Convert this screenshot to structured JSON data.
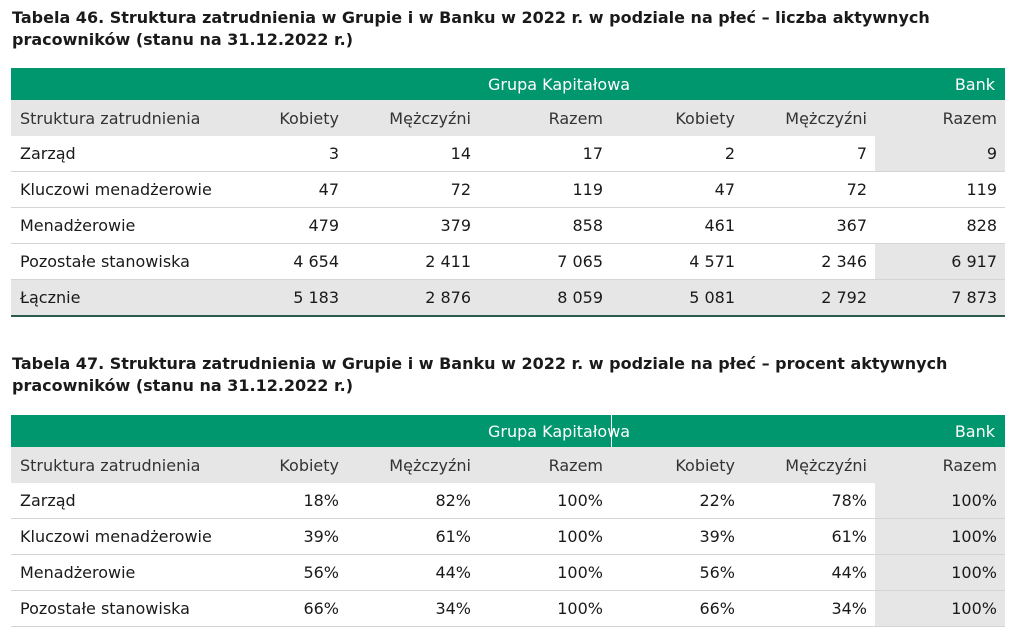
{
  "table46": {
    "caption": "Tabela 46. Struktura zatrudnienia w Grupie i w Banku w 2022 r. w podziale na płeć – liczba aktywnych pracowników (stanu na 31.12.2022 r.)",
    "group_header": "Grupa Kapitałowa",
    "bank_header": "Bank",
    "columns": [
      "Struktura zatrudnienia",
      "Kobiety",
      "Mężczyźni",
      "Razem",
      "Kobiety",
      "Mężczyźni",
      "Razem"
    ],
    "rows": [
      [
        "Zarząd",
        "3",
        "14",
        "17",
        "2",
        "7",
        "9"
      ],
      [
        "Kluczowi menadżerowie",
        "47",
        "72",
        "119",
        "47",
        "72",
        "119"
      ],
      [
        "Menadżerowie",
        "479",
        "379",
        "858",
        "461",
        "367",
        "828"
      ],
      [
        "Pozostałe stanowiska",
        "4 654",
        "2 411",
        "7 065",
        "4 571",
        "2 346",
        "6 917"
      ],
      [
        "Łącznie",
        "5 183",
        "2 876",
        "8 059",
        "5 081",
        "2 792",
        "7 873"
      ]
    ]
  },
  "table47": {
    "caption": "Tabela 47. Struktura zatrudnienia w Grupie i w Banku w 2022 r. w podziale na płeć – procent aktywnych pracowników (stanu na 31.12.2022 r.)",
    "group_header": "Grupa Kapitałowa",
    "bank_header": "Bank",
    "columns": [
      "Struktura zatrudnienia",
      "Kobiety",
      "Mężczyźni",
      "Razem",
      "Kobiety",
      "Mężczyźni",
      "Razem"
    ],
    "rows": [
      [
        "Zarząd",
        "18%",
        "82%",
        "100%",
        "22%",
        "78%",
        "100%"
      ],
      [
        "Kluczowi menadżerowie",
        "39%",
        "61%",
        "100%",
        "39%",
        "61%",
        "100%"
      ],
      [
        "Menadżerowie",
        "56%",
        "44%",
        "100%",
        "56%",
        "44%",
        "100%"
      ],
      [
        "Pozostałe stanowiska",
        "66%",
        "34%",
        "100%",
        "66%",
        "34%",
        "100%"
      ]
    ]
  },
  "colors": {
    "band": "#00966e",
    "shade": "#e6e6e6",
    "rule": "#2b5a4e"
  }
}
